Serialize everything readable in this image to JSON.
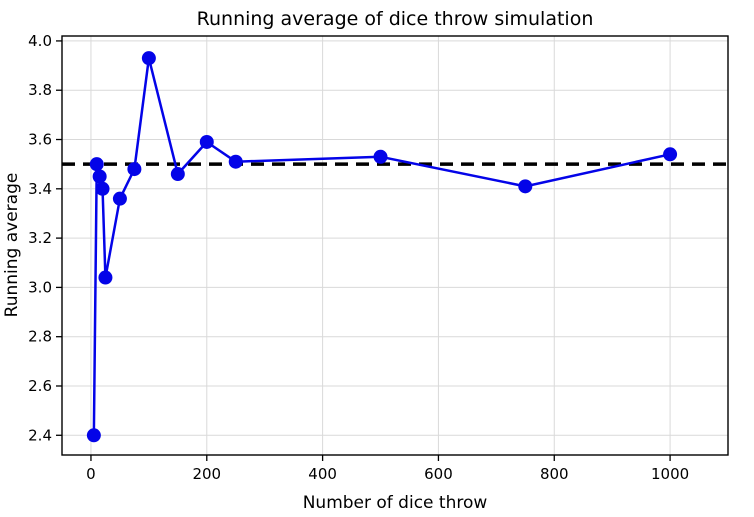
{
  "figure": {
    "title": "Running average of dice throw simulation",
    "xlabel": "Number of dice throw",
    "ylabel": "Running average"
  },
  "chart_data": {
    "type": "line",
    "title": "Running average of dice throw simulation",
    "xlabel": "Number of dice throw",
    "ylabel": "Running average",
    "series": [
      {
        "name": "running-average",
        "color": "#0404e8",
        "marker": "circle",
        "marker_size": 7,
        "line_width": 2.5,
        "x": [
          5,
          10,
          15,
          20,
          25,
          50,
          75,
          100,
          150,
          200,
          250,
          500,
          750,
          1000
        ],
        "y": [
          2.4,
          3.5,
          3.45,
          3.4,
          3.04,
          3.36,
          3.48,
          3.93,
          3.46,
          3.59,
          3.51,
          3.53,
          3.41,
          3.54
        ]
      }
    ],
    "reference_line": {
      "y": 3.5,
      "style": "dashed",
      "color": "#000000",
      "line_width": 3.5
    },
    "xlim": [
      -50,
      1100
    ],
    "ylim": [
      2.32,
      4.02
    ],
    "xticks": [
      0,
      200,
      400,
      600,
      800,
      1000
    ],
    "yticks": [
      2.4,
      2.6,
      2.8,
      3.0,
      3.2,
      3.4,
      3.6,
      3.8,
      4.0
    ],
    "grid": true,
    "grid_color": "#d9d9d9",
    "spine_color": "#000000",
    "legend": "none"
  }
}
